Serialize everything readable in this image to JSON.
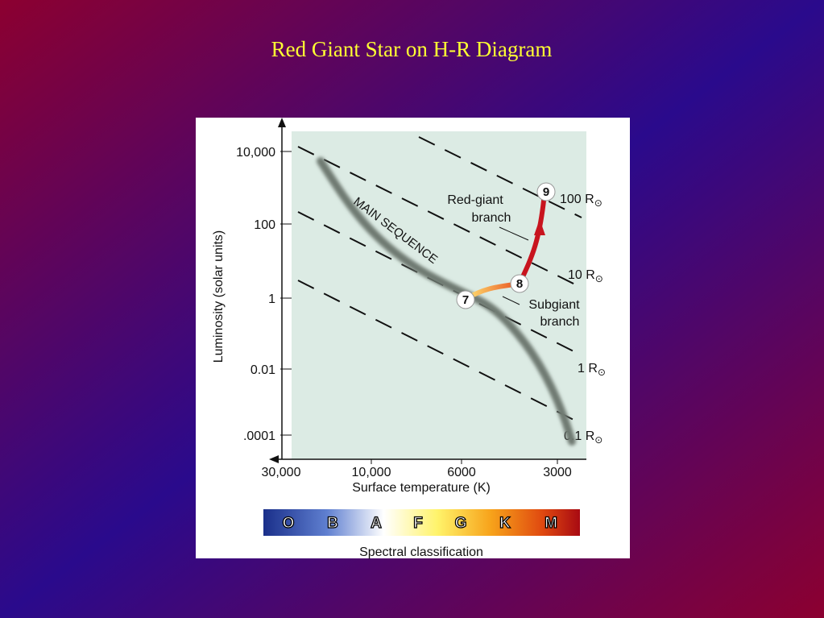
{
  "title": "Red Giant Star on H-R Diagram",
  "diagram": {
    "y_axis_label": "Luminosity (solar units)",
    "y_ticks": [
      "10,000",
      "100",
      "1",
      "0.01",
      ".0001"
    ],
    "x_axis_label": "Surface temperature (K)",
    "x_ticks": [
      "30,000",
      "10,000",
      "6000",
      "3000"
    ],
    "main_sequence_label": "MAIN SEQUENCE",
    "radius_lines": [
      {
        "text": "100 R",
        "sub": "⊙"
      },
      {
        "text": "10 R",
        "sub": "⊙"
      },
      {
        "text": "1 R",
        "sub": "⊙"
      },
      {
        "text": "0.1 R",
        "sub": "⊙"
      }
    ],
    "red_giant_branch": [
      "Red-giant",
      "branch"
    ],
    "subgiant_branch": [
      "Subgiant",
      "branch"
    ],
    "stages": [
      "7",
      "8",
      "9"
    ],
    "spectral_classes": [
      "O",
      "B",
      "A",
      "F",
      "G",
      "K",
      "M"
    ],
    "spectral_label": "Spectral classification"
  }
}
